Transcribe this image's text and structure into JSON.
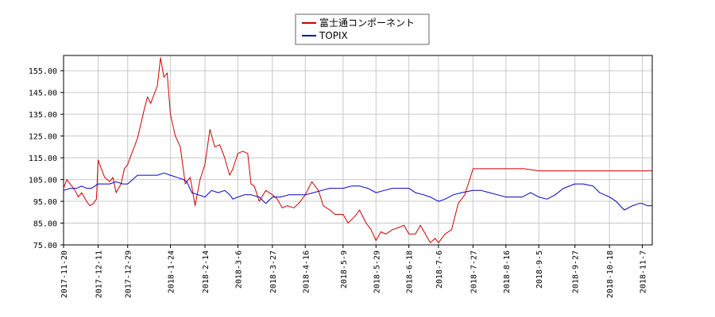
{
  "chart_data": {
    "type": "line",
    "title": "",
    "xlabel": "",
    "ylabel": "",
    "ylim": [
      75,
      162
    ],
    "y_ticks": [
      "155.00",
      "145.00",
      "135.00",
      "125.00",
      "115.00",
      "105.00",
      "95.00",
      "85.00",
      "75.00"
    ],
    "y_tick_values": [
      155,
      145,
      135,
      125,
      115,
      105,
      95,
      85,
      75
    ],
    "x_ticks": [
      "2017-11-20",
      "2017-12-11",
      "2017-12-29",
      "2018-1-24",
      "2018-2-14",
      "2018-3-6",
      "2018-3-27",
      "2018-4-16",
      "2018-5-9",
      "2018-5-29",
      "2018-6-18",
      "2018-7-6",
      "2018-7-27",
      "2018-8-16",
      "2018-9-5",
      "2018-9-27",
      "2018-10-18",
      "2018-11-7"
    ],
    "grid": true,
    "legend_position": "top-center",
    "series": [
      {
        "name": "富士通コンポーネント",
        "color": "#cc0000",
        "points": [
          [
            "2017-11-20",
            101
          ],
          [
            "2017-11-22",
            105
          ],
          [
            "2017-11-24",
            103
          ],
          [
            "2017-11-27",
            100
          ],
          [
            "2017-11-29",
            97
          ],
          [
            "2017-12-01",
            99
          ],
          [
            "2017-12-04",
            95
          ],
          [
            "2017-12-06",
            93
          ],
          [
            "2017-12-08",
            94
          ],
          [
            "2017-12-10",
            96
          ],
          [
            "2017-12-11",
            114
          ],
          [
            "2017-12-13",
            110
          ],
          [
            "2017-12-15",
            106
          ],
          [
            "2017-12-18",
            104
          ],
          [
            "2017-12-20",
            106
          ],
          [
            "2017-12-22",
            99
          ],
          [
            "2017-12-25",
            103
          ],
          [
            "2017-12-27",
            110
          ],
          [
            "2017-12-29",
            112
          ],
          [
            "2018-01-04",
            124
          ],
          [
            "2018-01-08",
            137
          ],
          [
            "2018-01-10",
            143
          ],
          [
            "2018-01-12",
            140
          ],
          [
            "2018-01-16",
            148
          ],
          [
            "2018-01-18",
            161
          ],
          [
            "2018-01-20",
            152
          ],
          [
            "2018-01-22",
            154
          ],
          [
            "2018-01-24",
            135
          ],
          [
            "2018-01-27",
            125
          ],
          [
            "2018-01-30",
            120
          ],
          [
            "2018-02-02",
            103
          ],
          [
            "2018-02-05",
            106
          ],
          [
            "2018-02-08",
            93
          ],
          [
            "2018-02-11",
            105
          ],
          [
            "2018-02-14",
            112
          ],
          [
            "2018-02-17",
            128
          ],
          [
            "2018-02-20",
            120
          ],
          [
            "2018-02-23",
            121
          ],
          [
            "2018-02-26",
            115
          ],
          [
            "2018-03-01",
            107
          ],
          [
            "2018-03-03",
            110
          ],
          [
            "2018-03-06",
            117
          ],
          [
            "2018-03-09",
            118
          ],
          [
            "2018-03-12",
            117
          ],
          [
            "2018-03-14",
            103
          ],
          [
            "2018-03-16",
            102
          ],
          [
            "2018-03-19",
            95
          ],
          [
            "2018-03-23",
            100
          ],
          [
            "2018-03-27",
            98
          ],
          [
            "2018-03-30",
            96
          ],
          [
            "2018-04-02",
            92
          ],
          [
            "2018-04-05",
            93
          ],
          [
            "2018-04-09",
            92
          ],
          [
            "2018-04-12",
            94
          ],
          [
            "2018-04-16",
            98
          ],
          [
            "2018-04-20",
            104
          ],
          [
            "2018-04-24",
            100
          ],
          [
            "2018-04-27",
            93
          ],
          [
            "2018-05-01",
            91
          ],
          [
            "2018-05-04",
            89
          ],
          [
            "2018-05-09",
            89
          ],
          [
            "2018-05-12",
            85
          ],
          [
            "2018-05-16",
            88
          ],
          [
            "2018-05-19",
            91
          ],
          [
            "2018-05-23",
            85
          ],
          [
            "2018-05-26",
            82
          ],
          [
            "2018-05-29",
            77
          ],
          [
            "2018-06-01",
            81
          ],
          [
            "2018-06-04",
            80
          ],
          [
            "2018-06-08",
            82
          ],
          [
            "2018-06-12",
            83
          ],
          [
            "2018-06-15",
            84
          ],
          [
            "2018-06-18",
            80
          ],
          [
            "2018-06-22",
            80
          ],
          [
            "2018-06-25",
            84
          ],
          [
            "2018-06-28",
            80
          ],
          [
            "2018-07-01",
            76
          ],
          [
            "2018-07-04",
            78
          ],
          [
            "2018-07-06",
            76
          ],
          [
            "2018-07-10",
            80
          ],
          [
            "2018-07-14",
            82
          ],
          [
            "2018-07-18",
            94
          ],
          [
            "2018-07-22",
            98
          ],
          [
            "2018-07-25",
            105
          ],
          [
            "2018-07-27",
            110
          ],
          [
            "2018-08-05",
            110
          ],
          [
            "2018-08-16",
            110
          ],
          [
            "2018-08-27",
            110
          ],
          [
            "2018-09-05",
            109
          ],
          [
            "2018-09-15",
            109
          ],
          [
            "2018-09-27",
            109
          ],
          [
            "2018-10-08",
            109
          ],
          [
            "2018-10-18",
            109
          ],
          [
            "2018-10-28",
            109
          ],
          [
            "2018-11-07",
            109
          ],
          [
            "2018-11-13",
            109
          ]
        ]
      },
      {
        "name": "TOPIX",
        "color": "#0000cc",
        "points": [
          [
            "2017-11-20",
            100
          ],
          [
            "2017-11-24",
            101
          ],
          [
            "2017-11-28",
            101
          ],
          [
            "2017-12-01",
            102
          ],
          [
            "2017-12-04",
            101
          ],
          [
            "2017-12-07",
            101
          ],
          [
            "2017-12-11",
            103
          ],
          [
            "2017-12-15",
            103
          ],
          [
            "2017-12-18",
            103
          ],
          [
            "2017-12-22",
            104
          ],
          [
            "2017-12-26",
            103
          ],
          [
            "2017-12-29",
            103
          ],
          [
            "2018-01-04",
            107
          ],
          [
            "2018-01-08",
            107
          ],
          [
            "2018-01-12",
            107
          ],
          [
            "2018-01-16",
            107
          ],
          [
            "2018-01-20",
            108
          ],
          [
            "2018-01-24",
            107
          ],
          [
            "2018-01-28",
            106
          ],
          [
            "2018-02-01",
            105
          ],
          [
            "2018-02-03",
            104
          ],
          [
            "2018-02-06",
            99
          ],
          [
            "2018-02-10",
            98
          ],
          [
            "2018-02-14",
            97
          ],
          [
            "2018-02-18",
            100
          ],
          [
            "2018-02-22",
            99
          ],
          [
            "2018-02-26",
            100
          ],
          [
            "2018-03-01",
            98
          ],
          [
            "2018-03-03",
            96
          ],
          [
            "2018-03-06",
            97
          ],
          [
            "2018-03-10",
            98
          ],
          [
            "2018-03-14",
            98
          ],
          [
            "2018-03-19",
            97
          ],
          [
            "2018-03-23",
            94
          ],
          [
            "2018-03-27",
            97
          ],
          [
            "2018-04-01",
            97
          ],
          [
            "2018-04-06",
            98
          ],
          [
            "2018-04-11",
            98
          ],
          [
            "2018-04-16",
            98
          ],
          [
            "2018-04-21",
            99
          ],
          [
            "2018-04-26",
            100
          ],
          [
            "2018-05-01",
            101
          ],
          [
            "2018-05-09",
            101
          ],
          [
            "2018-05-14",
            102
          ],
          [
            "2018-05-19",
            102
          ],
          [
            "2018-05-24",
            101
          ],
          [
            "2018-05-29",
            99
          ],
          [
            "2018-06-03",
            100
          ],
          [
            "2018-06-08",
            101
          ],
          [
            "2018-06-13",
            101
          ],
          [
            "2018-06-18",
            101
          ],
          [
            "2018-06-22",
            99
          ],
          [
            "2018-06-27",
            98
          ],
          [
            "2018-07-01",
            97
          ],
          [
            "2018-07-06",
            95
          ],
          [
            "2018-07-10",
            96
          ],
          [
            "2018-07-15",
            98
          ],
          [
            "2018-07-20",
            99
          ],
          [
            "2018-07-27",
            100
          ],
          [
            "2018-08-01",
            100
          ],
          [
            "2018-08-06",
            99
          ],
          [
            "2018-08-11",
            98
          ],
          [
            "2018-08-16",
            97
          ],
          [
            "2018-08-21",
            97
          ],
          [
            "2018-08-26",
            97
          ],
          [
            "2018-08-31",
            99
          ],
          [
            "2018-09-05",
            97
          ],
          [
            "2018-09-10",
            96
          ],
          [
            "2018-09-15",
            98
          ],
          [
            "2018-09-20",
            101
          ],
          [
            "2018-09-27",
            103
          ],
          [
            "2018-10-02",
            103
          ],
          [
            "2018-10-08",
            102
          ],
          [
            "2018-10-12",
            99
          ],
          [
            "2018-10-18",
            97
          ],
          [
            "2018-10-22",
            95
          ],
          [
            "2018-10-27",
            91
          ],
          [
            "2018-11-01",
            93
          ],
          [
            "2018-11-05",
            94
          ],
          [
            "2018-11-07",
            94
          ],
          [
            "2018-11-10",
            93
          ],
          [
            "2018-11-13",
            93
          ]
        ]
      }
    ]
  }
}
